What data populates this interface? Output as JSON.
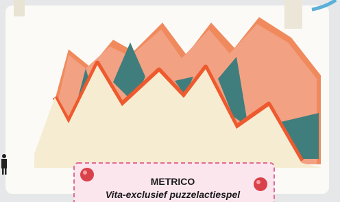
{
  "caption": {
    "title": "METRICO",
    "subtitle": "Vita-exclusief puzzelactiespel"
  }
}
